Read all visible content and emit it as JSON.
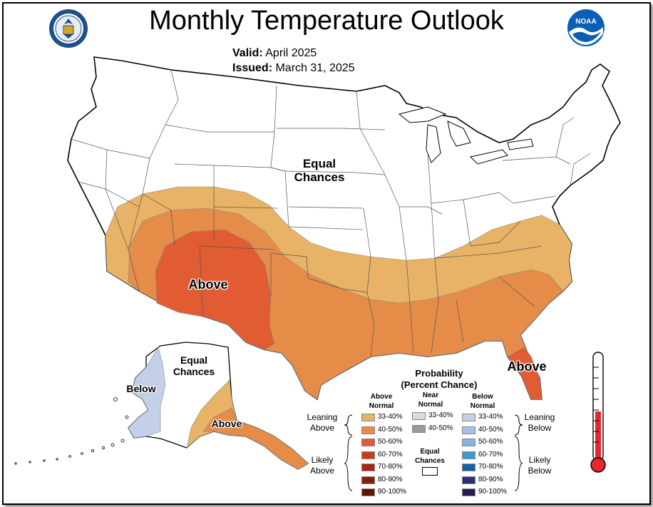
{
  "header": {
    "title": "Monthly Temperature Outlook",
    "valid_label": "Valid:",
    "valid_value": "April 2025",
    "issued_label": "Issued:",
    "issued_value": "March 31, 2025"
  },
  "logos": {
    "left": "department-of-commerce-seal",
    "right": "noaa-logo",
    "right_text": "NOAA"
  },
  "map_labels": {
    "conus_equal": "Equal",
    "conus_chances": "Chances",
    "conus_above": "Above",
    "florida_above": "Above",
    "alaska_equal": "Equal",
    "alaska_chances": "Chances",
    "alaska_below": "Below",
    "alaska_above": "Above"
  },
  "legend": {
    "title_line1": "Probability",
    "title_line2": "(Percent Chance)",
    "above_head_1": "Above",
    "above_head_2": "Normal",
    "near_head_1": "Near",
    "near_head_2": "Normal",
    "below_head_1": "Below",
    "below_head_2": "Normal",
    "equal_1": "Equal",
    "equal_2": "Chances",
    "leaning_above_1": "Leaning",
    "leaning_above_2": "Above",
    "likely_above_1": "Likely",
    "likely_above_2": "Above",
    "leaning_below_1": "Leaning",
    "leaning_below_2": "Below",
    "likely_below_1": "Likely",
    "likely_below_2": "Below",
    "above": [
      {
        "label": "33-40%",
        "color": "#e8b366"
      },
      {
        "label": "40-50%",
        "color": "#e58c48"
      },
      {
        "label": "50-60%",
        "color": "#e25c33"
      },
      {
        "label": "60-70%",
        "color": "#cc3b1c"
      },
      {
        "label": "70-80%",
        "color": "#a8260f"
      },
      {
        "label": "80-90%",
        "color": "#861d07"
      },
      {
        "label": "90-100%",
        "color": "#5a1705"
      }
    ],
    "near": [
      {
        "label": "33-40%",
        "color": "#d9d9d9"
      },
      {
        "label": "40-50%",
        "color": "#9a9a9a"
      }
    ],
    "below": [
      {
        "label": "33-40%",
        "color": "#c4cfe9"
      },
      {
        "label": "40-50%",
        "color": "#a6bfe4"
      },
      {
        "label": "50-60%",
        "color": "#7fb4e4"
      },
      {
        "label": "60-70%",
        "color": "#3d9ad9"
      },
      {
        "label": "70-80%",
        "color": "#1660a8"
      },
      {
        "label": "80-90%",
        "color": "#2a2f78"
      },
      {
        "label": "90-100%",
        "color": "#231e50"
      }
    ]
  },
  "colors": {
    "thermometer_fill": "#e8262b",
    "state_lines": "#555555"
  }
}
